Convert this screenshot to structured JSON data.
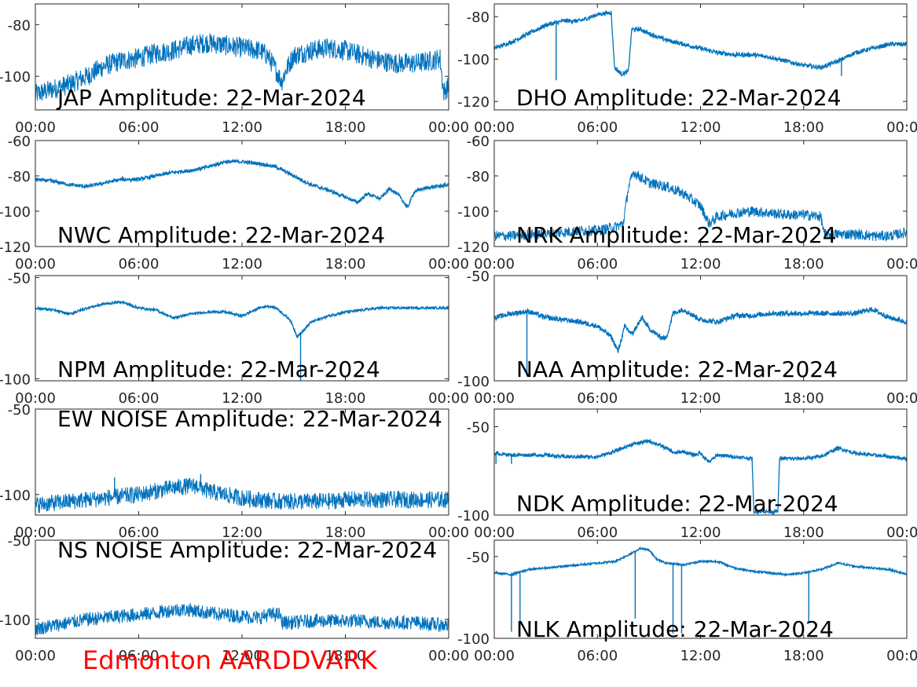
{
  "footer": {
    "label": "Edmonton AARDDVARK",
    "color": "#ff0000"
  },
  "colors": {
    "line": "#0072bd",
    "axis": "#262626"
  },
  "chart_data": [
    {
      "type": "line",
      "title": "JAP Amplitude: 22-Mar-2024",
      "xticks": [
        "00:00",
        "06:00",
        "12:00",
        "18:00",
        "00:00"
      ],
      "yticks": [
        -80,
        -100
      ],
      "ytick_labels": [
        "-80",
        "-100"
      ],
      "ylim": [
        -113,
        -72
      ],
      "x": [
        0,
        1,
        2,
        3,
        4,
        5,
        6,
        6.5,
        7,
        8,
        9,
        10,
        11,
        12,
        13,
        13.5,
        14,
        14.3,
        14.6,
        15,
        16,
        17,
        18,
        19,
        20,
        21,
        22,
        23,
        23.5,
        23.7,
        24
      ],
      "series": [
        {
          "values": [
            -107,
            -105,
            -103,
            -100,
            -96,
            -94,
            -93,
            -92,
            -91,
            -90,
            -88,
            -87,
            -88,
            -89,
            -90,
            -92,
            -98,
            -102,
            -97,
            -92,
            -90,
            -89,
            -90,
            -92,
            -94,
            -95,
            -95,
            -94,
            -93,
            -106,
            -104
          ]
        }
      ],
      "noise": 4
    },
    {
      "type": "line",
      "title": "DHO Amplitude: 22-Mar-2024",
      "xticks": [
        "00:00",
        "06:00",
        "12:00",
        "18:00",
        "00:00"
      ],
      "yticks": [
        -80,
        -100,
        -120
      ],
      "ytick_labels": [
        "-80",
        "-100",
        "-120"
      ],
      "ylim": [
        -124,
        -74
      ],
      "x": [
        0,
        1,
        2,
        3,
        4,
        5,
        6,
        6.8,
        7.0,
        7.4,
        7.8,
        8.0,
        8.5,
        9,
        10,
        11,
        12,
        13,
        14,
        15,
        16,
        17,
        18,
        19,
        20,
        21,
        22,
        23,
        24
      ],
      "series": [
        {
          "values": [
            -95,
            -92,
            -88,
            -84,
            -82,
            -82,
            -79,
            -78,
            -104,
            -107,
            -106,
            -86,
            -86,
            -88,
            -91,
            -93,
            -95,
            -97,
            -98,
            -98,
            -99,
            -101,
            -103,
            -104,
            -101,
            -97,
            -95,
            -93,
            -93
          ]
        }
      ],
      "noise": 1,
      "spikes": [
        {
          "x": 3.6,
          "y": -110
        },
        {
          "x": 20.2,
          "y": -108
        }
      ]
    },
    {
      "type": "line",
      "title": "NWC Amplitude: 22-Mar-2024",
      "xticks": [
        "00:00",
        "06:00",
        "12:00",
        "18:00",
        "00:00"
      ],
      "yticks": [
        -60,
        -80,
        -100,
        -120
      ],
      "ytick_labels": [
        "-60",
        "-80",
        "-100",
        "-120"
      ],
      "ylim": [
        -120,
        -60
      ],
      "x": [
        0,
        1,
        2,
        3,
        4,
        5,
        6,
        7,
        8,
        9,
        10,
        11,
        12,
        13,
        14,
        15,
        16,
        17,
        18,
        18.7,
        19.3,
        20,
        20.6,
        21.2,
        21.6,
        22,
        22.6,
        23.3,
        24
      ],
      "series": [
        {
          "values": [
            -82,
            -83,
            -85,
            -86,
            -84,
            -82,
            -82,
            -80,
            -78,
            -77,
            -75,
            -72,
            -72,
            -73,
            -75,
            -80,
            -85,
            -88,
            -92,
            -95,
            -90,
            -93,
            -87,
            -92,
            -98,
            -89,
            -87,
            -86,
            -85
          ]
        }
      ],
      "noise": 1
    },
    {
      "type": "line",
      "title": "NRK Amplitude: 22-Mar-2024",
      "xticks": [
        "00:00",
        "06:00",
        "12:00",
        "18:00",
        "00:00"
      ],
      "yticks": [
        -60,
        -80,
        -100,
        -120
      ],
      "ytick_labels": [
        "-60",
        "-80",
        "-100",
        "-120"
      ],
      "ylim": [
        -120,
        -60
      ],
      "x": [
        0,
        1,
        2,
        3,
        4,
        5,
        6,
        7,
        7.5,
        7.8,
        8.1,
        9,
        10,
        11,
        12,
        12.5,
        13,
        14,
        15,
        16,
        17,
        18,
        19,
        19.2,
        20,
        21,
        22,
        23,
        24
      ],
      "series": [
        {
          "values": [
            -114,
            -114,
            -113,
            -113,
            -112,
            -111,
            -111,
            -109,
            -107,
            -87,
            -78,
            -84,
            -86,
            -90,
            -97,
            -107,
            -103,
            -101,
            -100,
            -101,
            -102,
            -102,
            -103,
            -113,
            -113,
            -113,
            -114,
            -114,
            -112
          ]
        }
      ],
      "noise": 3
    },
    {
      "type": "line",
      "title": "NPM Amplitude: 22-Mar-2024",
      "xticks": [
        "00:00",
        "06:00",
        "12:00",
        "18:00",
        "00:00"
      ],
      "yticks": [
        -50,
        -100
      ],
      "ytick_labels": [
        "-50",
        "-100"
      ],
      "ylim": [
        -101,
        -49
      ],
      "x": [
        0,
        1,
        2,
        3,
        4,
        5,
        6,
        7,
        8,
        9,
        10,
        11,
        12,
        13,
        13.5,
        14,
        14.8,
        15.2,
        15.6,
        16,
        17,
        18,
        19,
        20,
        21,
        22,
        23,
        24
      ],
      "series": [
        {
          "values": [
            -65,
            -66,
            -68,
            -65,
            -63,
            -62,
            -65,
            -66,
            -70,
            -68,
            -67,
            -67,
            -69,
            -65,
            -64,
            -65,
            -71,
            -79,
            -76,
            -72,
            -69,
            -67,
            -66,
            -65,
            -65,
            -65,
            -65,
            -65
          ]
        }
      ],
      "noise": 0.6,
      "spikes": [
        {
          "x": 15.4,
          "y": -101
        }
      ]
    },
    {
      "type": "line",
      "title": "NAA Amplitude: 22-Mar-2024",
      "xticks": [
        "00:00",
        "06:00",
        "12:00",
        "18:00",
        "00:00"
      ],
      "yticks": [
        -50,
        -100
      ],
      "ytick_labels": [
        "-50",
        "-100"
      ],
      "ylim": [
        -100,
        -50
      ],
      "x": [
        0,
        1,
        2,
        3,
        4,
        5,
        6,
        6.8,
        7.2,
        7.6,
        8,
        8.6,
        9,
        9.6,
        10,
        10.4,
        11,
        12,
        13,
        14,
        15,
        16,
        17,
        18,
        19,
        20,
        21,
        22,
        23,
        24
      ],
      "series": [
        {
          "values": [
            -70,
            -68,
            -67,
            -70,
            -71,
            -72,
            -74,
            -79,
            -86,
            -74,
            -78,
            -70,
            -75,
            -79,
            -80,
            -68,
            -66,
            -71,
            -72,
            -69,
            -69,
            -68,
            -68,
            -68,
            -68,
            -68,
            -68,
            -66,
            -70,
            -72
          ]
        }
      ],
      "noise": 1.2,
      "spikes": [
        {
          "x": 1.9,
          "y": -98
        }
      ]
    },
    {
      "type": "line",
      "title": "EW NOISE Amplitude: 22-Mar-2024",
      "xticks": [
        "00:00",
        "06:00",
        "12:00",
        "18:00",
        "00:00"
      ],
      "yticks": [
        -50,
        -100
      ],
      "ytick_labels": [
        "-50",
        "-100"
      ],
      "ylim": [
        -112,
        -50
      ],
      "x": [
        0,
        1,
        2,
        3,
        4,
        5,
        6,
        7,
        8,
        9,
        9.5,
        10,
        11,
        12,
        13,
        14,
        15,
        16,
        17,
        18,
        19,
        20,
        21,
        22,
        23,
        24
      ],
      "series": [
        {
          "values": [
            -106,
            -105,
            -104,
            -103,
            -102,
            -101,
            -100,
            -98,
            -96,
            -95,
            -95,
            -98,
            -100,
            -102,
            -103,
            -104,
            -104,
            -104,
            -104,
            -103,
            -103,
            -103,
            -103,
            -103,
            -103,
            -103
          ]
        }
      ],
      "noise": 5,
      "spikes": [
        {
          "x": 4.6,
          "y": -90
        },
        {
          "x": 9.6,
          "y": -88
        }
      ]
    },
    {
      "type": "line",
      "title": "NDK Amplitude: 22-Mar-2024",
      "xticks": [
        "00:00",
        "06:00",
        "12:00",
        "18:00",
        "00:00"
      ],
      "yticks": [
        -50,
        -100
      ],
      "ytick_labels": [
        "-50",
        "-100"
      ],
      "ylim": [
        -100,
        -40
      ],
      "x": [
        0,
        1,
        2,
        3,
        4,
        5,
        6,
        7,
        8,
        9,
        10,
        10.5,
        11,
        11.6,
        12,
        12.5,
        13,
        14,
        15,
        15.1,
        16.5,
        16.6,
        17,
        18,
        19,
        20,
        21,
        22,
        23,
        24
      ],
      "series": [
        {
          "values": [
            -65,
            -66,
            -66,
            -66,
            -67,
            -67,
            -67,
            -64,
            -60,
            -58,
            -62,
            -65,
            -64,
            -66,
            -65,
            -70,
            -66,
            -67,
            -68,
            -98,
            -98,
            -68,
            -68,
            -68,
            -67,
            -62,
            -65,
            -66,
            -67,
            -68
          ]
        }
      ],
      "noise": 1,
      "spikes": [
        {
          "x": 0.1,
          "y": -71
        },
        {
          "x": 1,
          "y": -71
        },
        {
          "x": 16.2,
          "y": -100
        }
      ]
    },
    {
      "type": "line",
      "title": "NS NOISE Amplitude: 22-Mar-2024",
      "xticks": [
        "00:00",
        "06:00",
        "12:00",
        "18:00",
        "00:00"
      ],
      "yticks": [
        -50,
        -100
      ],
      "ytick_labels": [
        "-50",
        "-100"
      ],
      "ylim": [
        -112,
        -50
      ],
      "x": [
        0,
        1,
        2,
        3,
        4,
        5,
        6,
        7,
        8,
        9,
        10,
        11,
        12,
        13,
        13.5,
        14.2,
        14.3,
        15,
        16,
        17,
        18,
        19,
        20,
        21,
        22,
        23,
        24
      ],
      "series": [
        {
          "values": [
            -106,
            -104,
            -102,
            -100,
            -99,
            -98,
            -97,
            -96,
            -94,
            -94,
            -96,
            -97,
            -98,
            -99,
            -97,
            -97,
            -102,
            -102,
            -101,
            -101,
            -101,
            -101,
            -102,
            -102,
            -102,
            -103,
            -104
          ]
        }
      ],
      "noise": 4.5
    },
    {
      "type": "line",
      "title": "NLK Amplitude: 22-Mar-2024",
      "xticks": [
        "00:00",
        "06:00",
        "12:00",
        "18:00",
        "00:00"
      ],
      "yticks": [
        -50,
        -100
      ],
      "ytick_labels": [
        "-50",
        "-100"
      ],
      "ylim": [
        -100,
        -40
      ],
      "x": [
        0,
        1,
        2,
        3,
        4,
        5,
        6,
        7,
        8,
        8.5,
        9,
        9.5,
        10,
        11,
        12,
        13,
        14,
        15,
        16,
        17,
        18,
        19,
        20,
        21,
        22,
        23,
        24
      ],
      "series": [
        {
          "values": [
            -60,
            -61,
            -58,
            -57,
            -56,
            -55,
            -54,
            -53,
            -48,
            -45,
            -46,
            -52,
            -54,
            -55,
            -53,
            -53,
            -57,
            -59,
            -60,
            -61,
            -60,
            -58,
            -54,
            -56,
            -57,
            -58,
            -61
          ]
        }
      ],
      "noise": 0.6,
      "spikes": [
        {
          "x": 1,
          "y": -96
        },
        {
          "x": 1.5,
          "y": -92
        },
        {
          "x": 8.2,
          "y": -88
        },
        {
          "x": 10.4,
          "y": -97
        },
        {
          "x": 10.9,
          "y": -97
        },
        {
          "x": 18.3,
          "y": -90
        }
      ]
    }
  ]
}
